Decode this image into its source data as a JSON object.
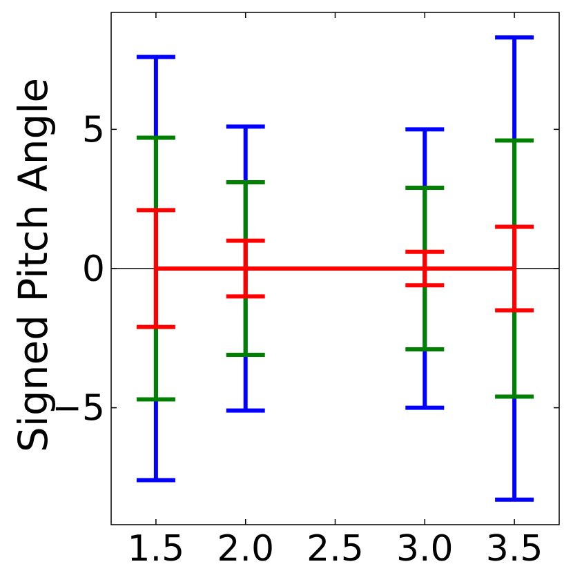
{
  "chart_data": {
    "type": "errorbar",
    "ylabel": "Signed Pitch Angle",
    "xlabel": "",
    "title": "",
    "xlim": [
      1.25,
      3.75
    ],
    "ylim": [
      -9.2,
      9.2
    ],
    "xticks": [
      1.5,
      2.0,
      2.5,
      3.0,
      3.5
    ],
    "xtick_labels": [
      "1.5",
      "2.0",
      "2.5",
      "3.0",
      "3.5"
    ],
    "yticks": [
      -5,
      0,
      5
    ],
    "ytick_labels": [
      "−5",
      "0",
      "5"
    ],
    "zero_line": true,
    "grid": false,
    "x": [
      1.5,
      2.0,
      3.0,
      3.5
    ],
    "series": [
      {
        "color": "#0000ff",
        "center": [
          0,
          0,
          0,
          0
        ],
        "err": [
          7.6,
          5.1,
          5.0,
          8.3
        ]
      },
      {
        "color": "#008000",
        "center": [
          0,
          0,
          0,
          0
        ],
        "err": [
          4.7,
          3.1,
          2.9,
          4.6
        ]
      },
      {
        "color": "#ff0000",
        "center": [
          0,
          0,
          0,
          0
        ],
        "err": [
          2.1,
          1.0,
          0.6,
          1.5
        ]
      }
    ]
  }
}
